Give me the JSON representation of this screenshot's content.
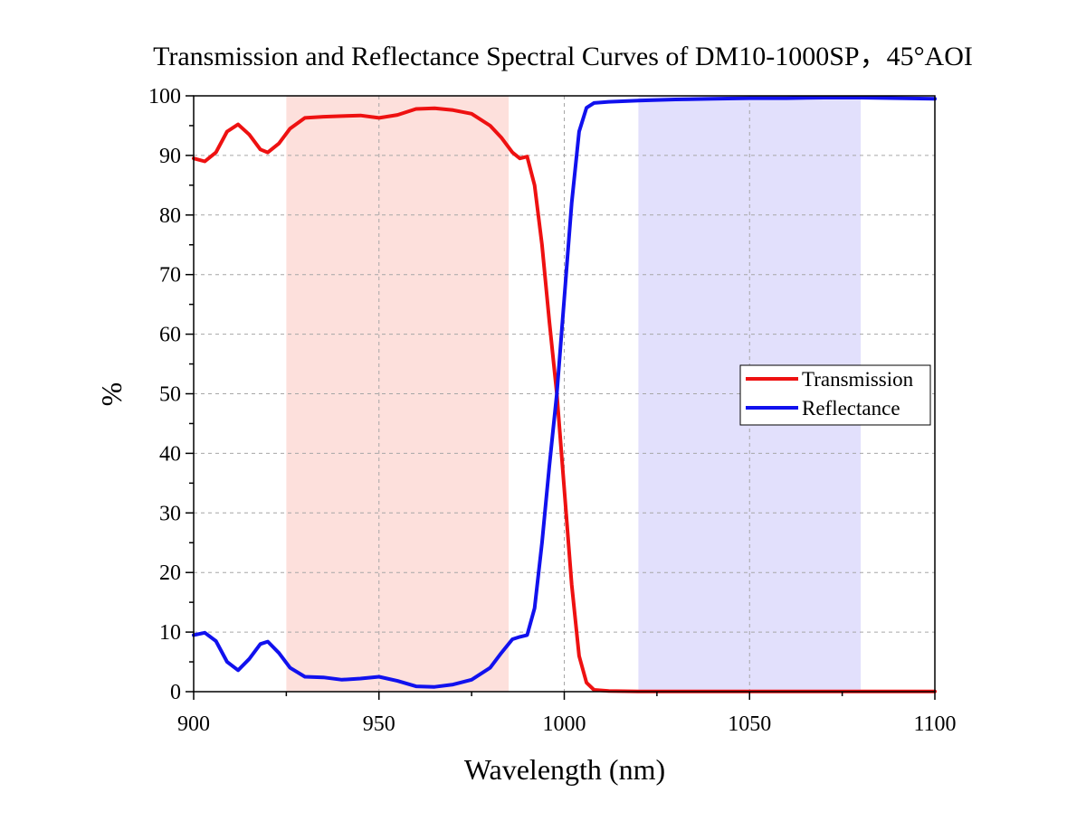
{
  "chart_data": {
    "type": "line",
    "title": "Transmission and Reflectance Spectral Curves of DM10-1000SP，45°AOI",
    "xlabel": "Wavelength (nm)",
    "ylabel": "%",
    "xlim": [
      900,
      1100
    ],
    "ylim": [
      0,
      100
    ],
    "xticks": [
      900,
      950,
      1000,
      1050,
      1100
    ],
    "yticks": [
      0,
      10,
      20,
      30,
      40,
      50,
      60,
      70,
      80,
      90,
      100
    ],
    "grid": true,
    "legend_position": "right",
    "bands": [
      {
        "x0": 925,
        "x1": 985,
        "color": "#fde0dc"
      },
      {
        "x0": 1020,
        "x1": 1080,
        "color": "#e2e0fc"
      }
    ],
    "series": [
      {
        "name": "Transmission",
        "color": "#ee1111",
        "points": [
          [
            900,
            89.5
          ],
          [
            903,
            89.0
          ],
          [
            906,
            90.5
          ],
          [
            909,
            94.0
          ],
          [
            912,
            95.2
          ],
          [
            915,
            93.5
          ],
          [
            918,
            91.0
          ],
          [
            920,
            90.5
          ],
          [
            923,
            92.0
          ],
          [
            926,
            94.5
          ],
          [
            930,
            96.3
          ],
          [
            935,
            96.5
          ],
          [
            940,
            96.6
          ],
          [
            945,
            96.7
          ],
          [
            950,
            96.3
          ],
          [
            955,
            96.8
          ],
          [
            960,
            97.8
          ],
          [
            965,
            97.9
          ],
          [
            970,
            97.6
          ],
          [
            975,
            97.0
          ],
          [
            980,
            95.0
          ],
          [
            983,
            93.0
          ],
          [
            986,
            90.5
          ],
          [
            988,
            89.5
          ],
          [
            990,
            89.8
          ],
          [
            992,
            85.0
          ],
          [
            994,
            75.0
          ],
          [
            996,
            62.0
          ],
          [
            998,
            50.0
          ],
          [
            1000,
            34.0
          ],
          [
            1002,
            18.0
          ],
          [
            1004,
            6.0
          ],
          [
            1006,
            1.5
          ],
          [
            1008,
            0.3
          ],
          [
            1012,
            0.1
          ],
          [
            1020,
            0.05
          ],
          [
            1040,
            0.05
          ],
          [
            1060,
            0.05
          ],
          [
            1080,
            0.05
          ],
          [
            1100,
            0.05
          ]
        ]
      },
      {
        "name": "Reflectance",
        "color": "#1111ee",
        "points": [
          [
            900,
            9.5
          ],
          [
            903,
            9.9
          ],
          [
            906,
            8.5
          ],
          [
            909,
            5.0
          ],
          [
            912,
            3.6
          ],
          [
            915,
            5.5
          ],
          [
            918,
            8.0
          ],
          [
            920,
            8.4
          ],
          [
            923,
            6.5
          ],
          [
            926,
            4.0
          ],
          [
            930,
            2.5
          ],
          [
            935,
            2.4
          ],
          [
            940,
            2.0
          ],
          [
            945,
            2.2
          ],
          [
            950,
            2.5
          ],
          [
            955,
            1.8
          ],
          [
            960,
            0.9
          ],
          [
            965,
            0.8
          ],
          [
            970,
            1.2
          ],
          [
            975,
            2.0
          ],
          [
            980,
            4.0
          ],
          [
            983,
            6.5
          ],
          [
            986,
            8.8
          ],
          [
            988,
            9.2
          ],
          [
            990,
            9.5
          ],
          [
            992,
            14.0
          ],
          [
            994,
            25.0
          ],
          [
            996,
            38.0
          ],
          [
            998,
            50.0
          ],
          [
            1000,
            66.0
          ],
          [
            1002,
            82.0
          ],
          [
            1004,
            94.0
          ],
          [
            1006,
            98.0
          ],
          [
            1008,
            98.8
          ],
          [
            1012,
            99.0
          ],
          [
            1020,
            99.2
          ],
          [
            1030,
            99.4
          ],
          [
            1040,
            99.5
          ],
          [
            1050,
            99.6
          ],
          [
            1060,
            99.6
          ],
          [
            1070,
            99.7
          ],
          [
            1080,
            99.7
          ],
          [
            1090,
            99.6
          ],
          [
            1100,
            99.5
          ]
        ]
      }
    ]
  }
}
